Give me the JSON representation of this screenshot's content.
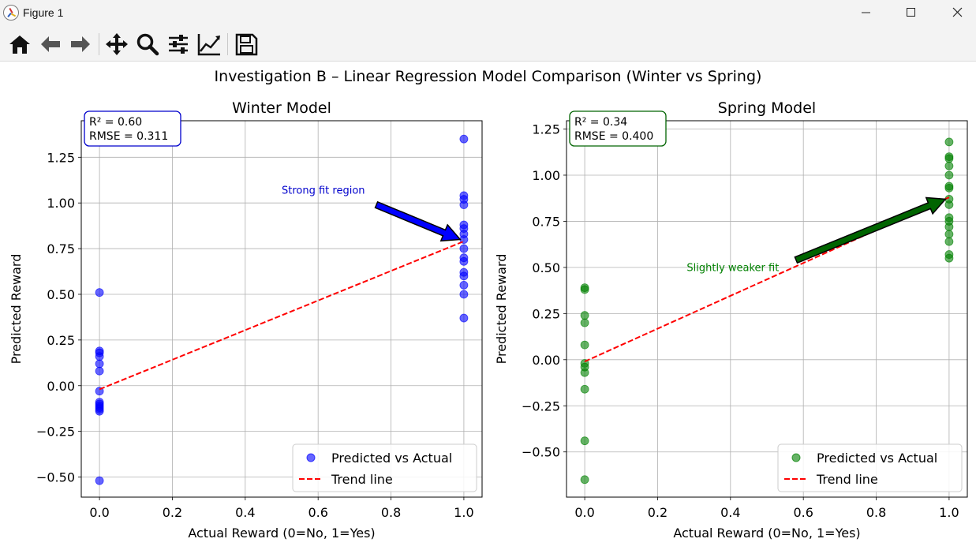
{
  "window": {
    "title": "Figure 1",
    "controls": [
      "minimize",
      "maximize",
      "close"
    ]
  },
  "toolbar": {
    "buttons": [
      {
        "name": "home-icon",
        "tooltip": "Reset original view"
      },
      {
        "name": "back-arrow-icon",
        "tooltip": "Back"
      },
      {
        "name": "forward-arrow-icon",
        "tooltip": "Forward"
      },
      {
        "name": "pan-icon",
        "tooltip": "Pan"
      },
      {
        "name": "zoom-icon",
        "tooltip": "Zoom"
      },
      {
        "name": "configure-subplots-icon",
        "tooltip": "Configure subplots"
      },
      {
        "name": "edit-axis-icon",
        "tooltip": "Edit axis"
      },
      {
        "name": "save-icon",
        "tooltip": "Save"
      }
    ]
  },
  "figure": {
    "suptitle": "Investigation B – Linear Regression Model Comparison (Winter vs Spring)"
  },
  "chart_data": [
    {
      "type": "scatter",
      "title": "Winter Model",
      "xlabel": "Actual Reward (0=No, 1=Yes)",
      "ylabel": "Predicted Reward",
      "xlim": [
        -0.05,
        1.05
      ],
      "ylim": [
        -0.61,
        1.45
      ],
      "xticks": [
        "0.0",
        "0.2",
        "0.4",
        "0.6",
        "0.8",
        "1.0"
      ],
      "xtick_values": [
        0.0,
        0.2,
        0.4,
        0.6,
        0.8,
        1.0
      ],
      "yticks": [
        "−0.50",
        "−0.25",
        "0.00",
        "0.25",
        "0.50",
        "0.75",
        "1.00",
        "1.25"
      ],
      "ytick_values": [
        -0.5,
        -0.25,
        0.0,
        0.25,
        0.5,
        0.75,
        1.0,
        1.25
      ],
      "grid": true,
      "color": "#0000ff",
      "legend_position": "lower-right",
      "series": [
        {
          "name": "Predicted vs Actual",
          "kind": "scatter",
          "points": [
            [
              0,
              0.51
            ],
            [
              0,
              0.19
            ],
            [
              0,
              0.18
            ],
            [
              0,
              0.16
            ],
            [
              0,
              0.12
            ],
            [
              0,
              0.08
            ],
            [
              0,
              -0.03
            ],
            [
              0,
              -0.09
            ],
            [
              0,
              -0.1
            ],
            [
              0,
              -0.11
            ],
            [
              0,
              -0.12
            ],
            [
              0,
              -0.13
            ],
            [
              0,
              -0.14
            ],
            [
              0,
              -0.52
            ],
            [
              1,
              1.35
            ],
            [
              1,
              1.04
            ],
            [
              1,
              1.02
            ],
            [
              1,
              0.99
            ],
            [
              1,
              0.88
            ],
            [
              1,
              0.86
            ],
            [
              1,
              0.83
            ],
            [
              1,
              0.8
            ],
            [
              1,
              0.75
            ],
            [
              1,
              0.7
            ],
            [
              1,
              0.68
            ],
            [
              1,
              0.62
            ],
            [
              1,
              0.6
            ],
            [
              1,
              0.55
            ],
            [
              1,
              0.5
            ],
            [
              1,
              0.37
            ]
          ]
        },
        {
          "name": "Trend line",
          "kind": "line",
          "style": "dashed",
          "color": "#ff0000",
          "points": [
            [
              0,
              -0.02
            ],
            [
              1,
              0.79
            ]
          ]
        }
      ],
      "stats_box": {
        "lines": [
          "R² = 0.60",
          "RMSE = 0.311"
        ],
        "border": "#0000cc"
      },
      "annotation": {
        "text": "Strong fit region",
        "color": "#0000cc",
        "x": 0.5,
        "y": 1.05,
        "arrow_to": [
          0.99,
          0.8
        ],
        "arrow_from": [
          0.76,
          0.99
        ],
        "arrow_color": "#0000ff"
      }
    },
    {
      "type": "scatter",
      "title": "Spring Model",
      "xlabel": "Actual Reward (0=No, 1=Yes)",
      "ylabel": "Predicted Reward",
      "xlim": [
        -0.05,
        1.05
      ],
      "ylim": [
        -0.745,
        1.295
      ],
      "xticks": [
        "0.0",
        "0.2",
        "0.4",
        "0.6",
        "0.8",
        "1.0"
      ],
      "xtick_values": [
        0.0,
        0.2,
        0.4,
        0.6,
        0.8,
        1.0
      ],
      "yticks": [
        "−0.50",
        "−0.25",
        "0.00",
        "0.25",
        "0.50",
        "0.75",
        "1.00",
        "1.25"
      ],
      "ytick_values": [
        -0.5,
        -0.25,
        0.0,
        0.25,
        0.5,
        0.75,
        1.0,
        1.25
      ],
      "grid": true,
      "color": "#008000",
      "legend_position": "lower-right",
      "series": [
        {
          "name": "Predicted vs Actual",
          "kind": "scatter",
          "points": [
            [
              0,
              0.39
            ],
            [
              0,
              0.38
            ],
            [
              0,
              0.24
            ],
            [
              0,
              0.2
            ],
            [
              0,
              0.08
            ],
            [
              0,
              -0.02
            ],
            [
              0,
              -0.04
            ],
            [
              0,
              -0.07
            ],
            [
              0,
              -0.16
            ],
            [
              0,
              -0.44
            ],
            [
              0,
              -0.65
            ],
            [
              1,
              1.18
            ],
            [
              1,
              1.1
            ],
            [
              1,
              1.09
            ],
            [
              1,
              1.05
            ],
            [
              1,
              1.0
            ],
            [
              1,
              0.94
            ],
            [
              1,
              0.93
            ],
            [
              1,
              0.87
            ],
            [
              1,
              0.84
            ],
            [
              1,
              0.77
            ],
            [
              1,
              0.75
            ],
            [
              1,
              0.72
            ],
            [
              1,
              0.68
            ],
            [
              1,
              0.64
            ],
            [
              1,
              0.57
            ],
            [
              1,
              0.55
            ]
          ]
        },
        {
          "name": "Trend line",
          "kind": "line",
          "style": "dashed",
          "color": "#ff0000",
          "points": [
            [
              0,
              -0.01
            ],
            [
              1,
              0.88
            ]
          ]
        }
      ],
      "stats_box": {
        "lines": [
          "R² = 0.34",
          "RMSE = 0.400"
        ],
        "border": "#006400"
      },
      "annotation": {
        "text": "Slightly weaker fit",
        "color": "#008000",
        "x": 0.28,
        "y": 0.48,
        "arrow_to": [
          0.99,
          0.87
        ],
        "arrow_from": [
          0.58,
          0.54
        ],
        "arrow_color": "#006400"
      }
    }
  ]
}
